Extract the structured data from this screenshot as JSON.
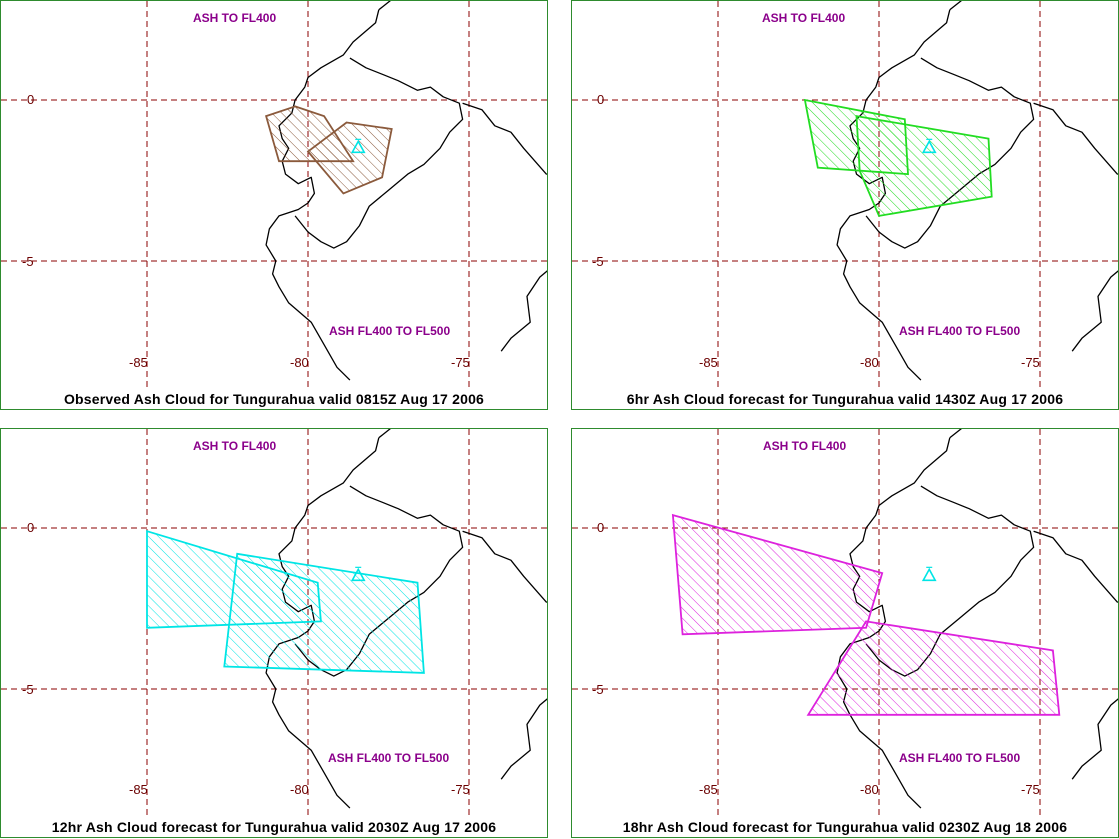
{
  "colors": {
    "grid": "#8b0000",
    "coast": "#000000",
    "volcano": "#00e5e5",
    "label": "#8b008b"
  },
  "panels": [
    {
      "caption": "Observed Ash Cloud for Tungurahua valid 0815Z Aug 17 2006",
      "label_top": "ASH TO FL400",
      "label_bottom": "ASH FL400 TO FL500",
      "color": "#8b5a3c",
      "clouds": [
        [
          [
            -80.4,
            -0.2
          ],
          [
            -79.5,
            -0.5
          ],
          [
            -78.6,
            -1.9
          ],
          [
            -80.9,
            -1.9
          ],
          [
            -81.3,
            -0.5
          ]
        ],
        [
          [
            -78.8,
            -0.7
          ],
          [
            -77.4,
            -0.9
          ],
          [
            -77.7,
            -2.4
          ],
          [
            -78.9,
            -2.9
          ],
          [
            -80.0,
            -1.6
          ]
        ]
      ]
    },
    {
      "caption": "6hr Ash Cloud forecast for Tungurahua valid 1430Z Aug 17 2006",
      "label_top": "ASH TO FL400",
      "label_bottom": "ASH FL400 TO FL500",
      "color": "#22dd22",
      "clouds": [
        [
          [
            -82.3,
            0.0
          ],
          [
            -79.2,
            -0.6
          ],
          [
            -79.1,
            -2.3
          ],
          [
            -81.9,
            -2.1
          ]
        ],
        [
          [
            -80.7,
            -0.5
          ],
          [
            -76.6,
            -1.2
          ],
          [
            -76.5,
            -3.0
          ],
          [
            -80.0,
            -3.6
          ],
          [
            -80.6,
            -2.2
          ]
        ]
      ]
    },
    {
      "caption": "12hr Ash Cloud forecast for Tungurahua valid 2030Z Aug 17 2006",
      "label_top": "ASH TO FL400",
      "label_bottom": "ASH FL400 TO FL500",
      "color": "#00e5e5",
      "clouds": [
        [
          [
            -85.0,
            -0.1
          ],
          [
            -79.7,
            -1.7
          ],
          [
            -79.6,
            -2.9
          ],
          [
            -85.0,
            -3.1
          ]
        ],
        [
          [
            -82.2,
            -0.8
          ],
          [
            -76.6,
            -1.7
          ],
          [
            -76.4,
            -4.5
          ],
          [
            -82.6,
            -4.3
          ]
        ]
      ]
    },
    {
      "caption": "18hr Ash Cloud forecast for Tungurahua valid 0230Z Aug 18 2006",
      "label_top": "ASH TO FL400",
      "label_bottom": "ASH FL400 TO FL500",
      "color": "#dd22dd",
      "clouds": [
        [
          [
            -86.4,
            0.4
          ],
          [
            -79.9,
            -1.4
          ],
          [
            -80.4,
            -3.1
          ],
          [
            -86.1,
            -3.3
          ]
        ],
        [
          [
            -80.4,
            -2.9
          ],
          [
            -74.6,
            -3.8
          ],
          [
            -74.4,
            -5.8
          ],
          [
            -82.2,
            -5.8
          ]
        ]
      ]
    }
  ],
  "axes": {
    "lon_ticks": [
      "-85",
      "-80",
      "-75"
    ],
    "lat_ticks": [
      "0",
      "-5"
    ]
  },
  "volcano": {
    "name": "Tungurahua",
    "lon": -78.44,
    "lat": -1.47
  }
}
